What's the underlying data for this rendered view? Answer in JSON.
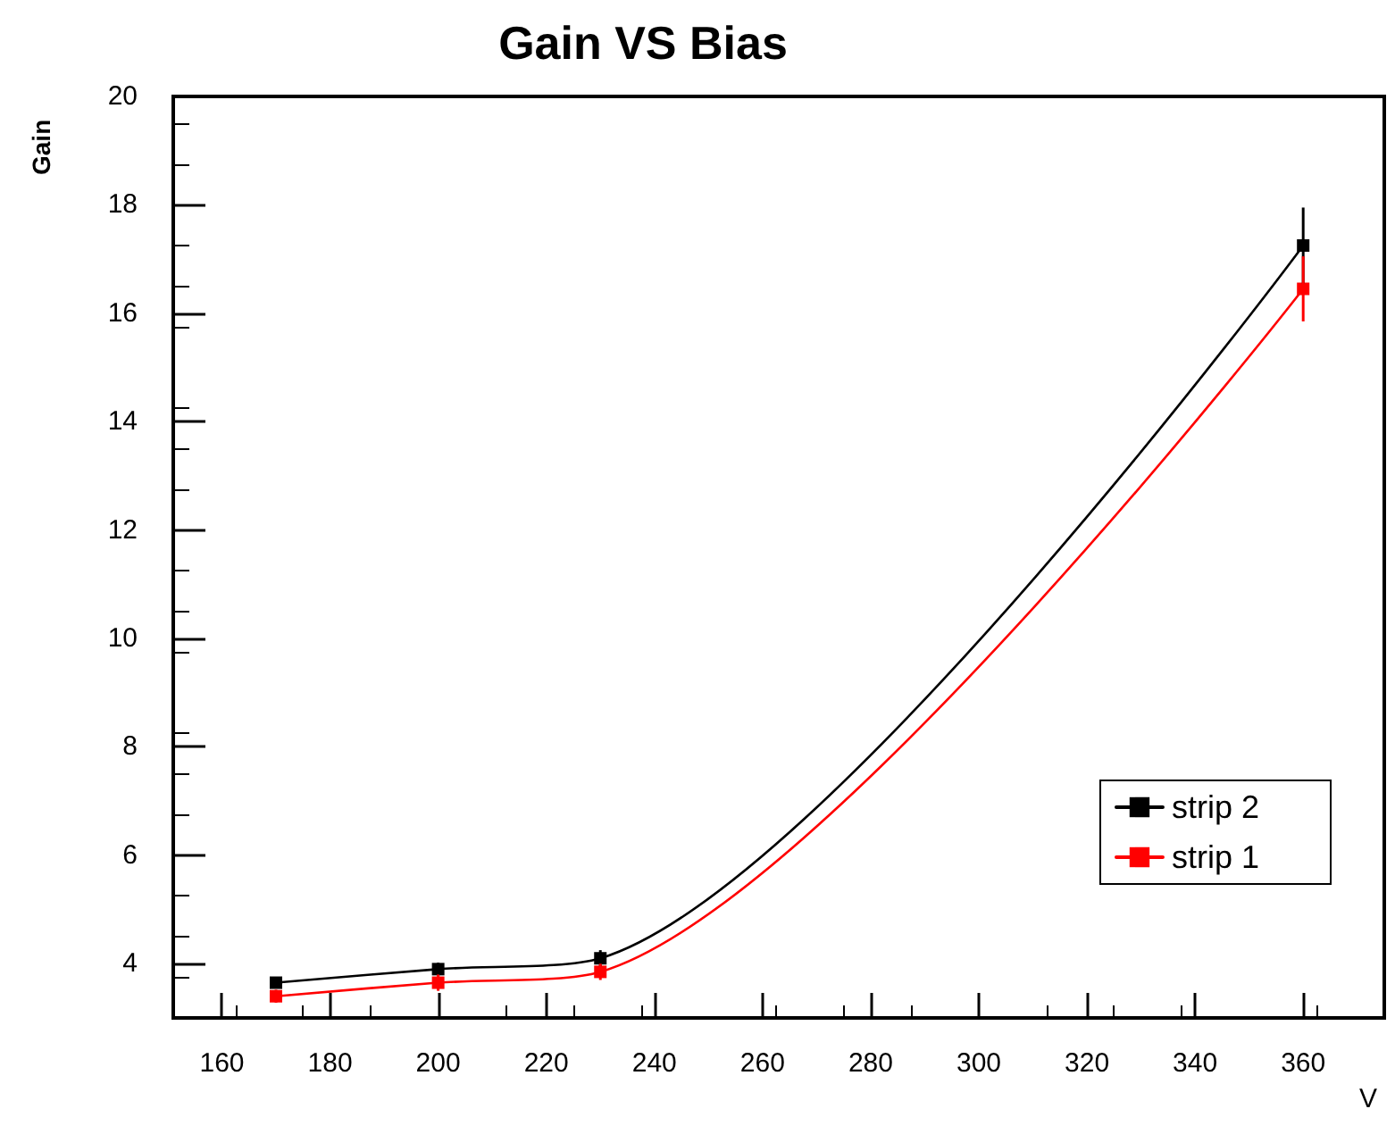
{
  "chart_data": {
    "type": "line",
    "title": "Gain VS Bias",
    "xlabel": "V",
    "ylabel": "Gain",
    "xlim": [
      151,
      375
    ],
    "xticks": [
      160,
      180,
      200,
      220,
      240,
      260,
      280,
      300,
      320,
      340,
      360
    ],
    "ylim": [
      3,
      20
    ],
    "yticks": [
      4,
      6,
      8,
      10,
      12,
      14,
      16,
      18,
      20
    ],
    "series": [
      {
        "name": "strip 2",
        "color": "#000000",
        "x": [
          170,
          200,
          230,
          360
        ],
        "values": [
          3.65,
          3.9,
          4.1,
          17.25
        ],
        "errors": [
          0.1,
          0.12,
          0.15,
          0.7
        ]
      },
      {
        "name": "strip 1",
        "color": "#ff0000",
        "x": [
          170,
          200,
          230,
          360
        ],
        "values": [
          3.4,
          3.65,
          3.85,
          16.45
        ],
        "errors": [
          0.12,
          0.15,
          0.15,
          0.6
        ]
      }
    ],
    "marker": "square",
    "line_style": "solid",
    "grid": false,
    "legend": "bottom right"
  }
}
